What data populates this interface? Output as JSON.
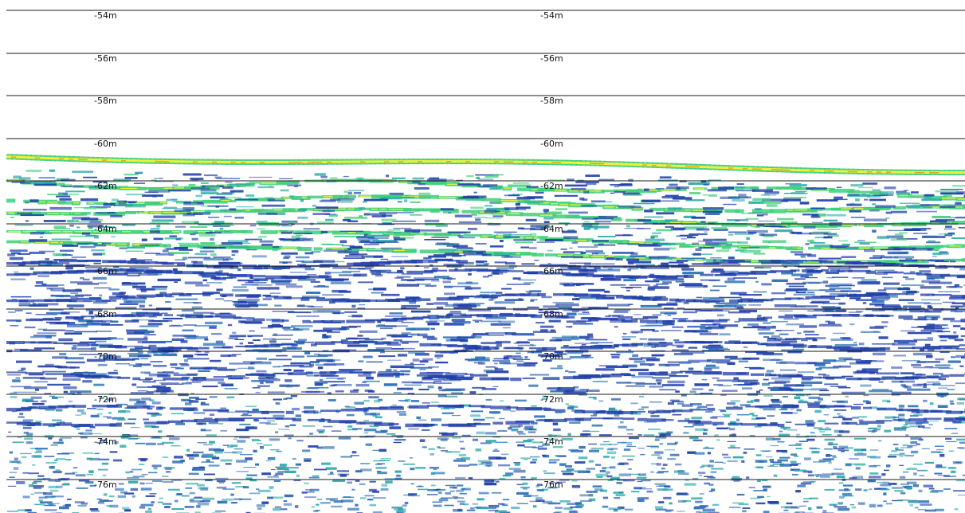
{
  "depth_lines": [
    {
      "label": "-54m"
    },
    {
      "label": "-56m"
    },
    {
      "label": "-58m"
    },
    {
      "label": "-60m"
    },
    {
      "label": "-62m"
    },
    {
      "label": "-64m"
    },
    {
      "label": "-66m"
    },
    {
      "label": "-68m"
    },
    {
      "label": "-70m"
    },
    {
      "label": "-72m"
    },
    {
      "label": "-74m"
    },
    {
      "label": "-76m"
    }
  ],
  "colors": {
    "background": "#ffffff",
    "strong_reflector_core": "#e8a020",
    "strong_reflector": "#f0ef3a",
    "medium_reflector": "#3fcf7a",
    "teal_reflector": "#2aa8a8",
    "weak_reflector": "#1f3fa8",
    "faint_reflector": "#2b6fb5",
    "depth_line": "#1a1a1a"
  }
}
